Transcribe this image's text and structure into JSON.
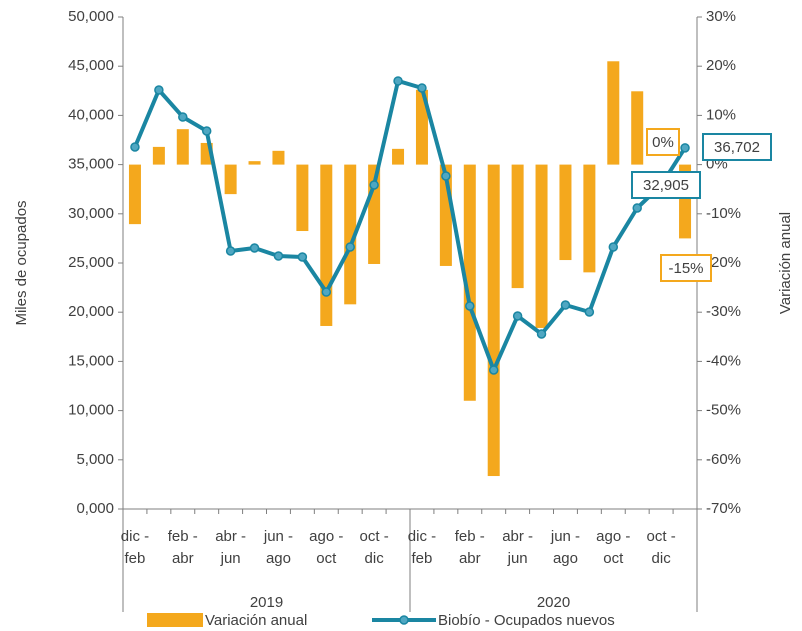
{
  "chart_data": {
    "type": "bar-line",
    "categories": [
      "dic - feb",
      null,
      "feb - abr",
      null,
      "abr - jun",
      null,
      "jun - ago",
      null,
      "ago - oct",
      null,
      "oct - dic",
      null,
      "dic - feb",
      null,
      "feb - abr",
      null,
      "abr - jun",
      null,
      "jun - ago",
      null,
      "ago - oct",
      null,
      "oct - dic",
      null
    ],
    "groups": [
      "2019",
      "2020"
    ],
    "y_label": "Miles de ocupados",
    "y2_label": "Variación anual",
    "ylim": [
      0,
      50000
    ],
    "yticks": [
      {
        "value": 0,
        "label": "0,000"
      },
      {
        "value": 5000,
        "label": "5,000"
      },
      {
        "value": 10000,
        "label": "10,000"
      },
      {
        "value": 15000,
        "label": "15,000"
      },
      {
        "value": 20000,
        "label": "20,000"
      },
      {
        "value": 25000,
        "label": "25,000"
      },
      {
        "value": 30000,
        "label": "30,000"
      },
      {
        "value": 35000,
        "label": "35,000"
      },
      {
        "value": 40000,
        "label": "40,000"
      },
      {
        "value": 45000,
        "label": "45,000"
      },
      {
        "value": 50000,
        "label": "50,000"
      }
    ],
    "y2lim": [
      -70,
      30
    ],
    "y2ticks": [
      {
        "value": -70,
        "label": "-70%"
      },
      {
        "value": -60,
        "label": "-60%"
      },
      {
        "value": -50,
        "label": "-50%"
      },
      {
        "value": -40,
        "label": "-40%"
      },
      {
        "value": -30,
        "label": "-30%"
      },
      {
        "value": -20,
        "label": "-20%"
      },
      {
        "value": -10,
        "label": "-10%"
      },
      {
        "value": 0,
        "label": "0%"
      },
      {
        "value": 10,
        "label": "10%"
      },
      {
        "value": 20,
        "label": "20%"
      },
      {
        "value": 30,
        "label": "30%"
      }
    ],
    "legend": "bottom",
    "series": [
      {
        "name": "Variación anual",
        "type": "bar",
        "axis": "y2",
        "color": "#f4a81d",
        "values": [
          -12.1,
          3.6,
          7.2,
          4.4,
          -6.0,
          0.7,
          2.8,
          -13.5,
          -32.8,
          -28.4,
          -20.2,
          3.2,
          15.2,
          -20.6,
          -48.0,
          -63.3,
          -25.1,
          -33.2,
          -19.4,
          -21.9,
          21.0,
          14.9,
          0,
          -15
        ],
        "value_labels": [
          null,
          null,
          null,
          null,
          null,
          null,
          null,
          null,
          null,
          null,
          null,
          null,
          null,
          null,
          null,
          null,
          null,
          null,
          null,
          null,
          null,
          null,
          "0%",
          "-15%"
        ]
      },
      {
        "name": "Biobío - Ocupados nuevos",
        "type": "line",
        "axis": "y",
        "color": "#1a86a2",
        "values": [
          36789,
          42580,
          39840,
          38415,
          26220,
          26525,
          25710,
          25610,
          22050,
          26630,
          32930,
          43500,
          42785,
          33840,
          20630,
          14125,
          19615,
          17785,
          20730,
          20020,
          26630,
          30590,
          32905,
          36702
        ],
        "value_labels": [
          null,
          null,
          null,
          null,
          null,
          null,
          null,
          null,
          null,
          null,
          null,
          null,
          null,
          null,
          null,
          null,
          null,
          null,
          null,
          null,
          null,
          null,
          "32,905",
          "36,702"
        ]
      }
    ]
  }
}
